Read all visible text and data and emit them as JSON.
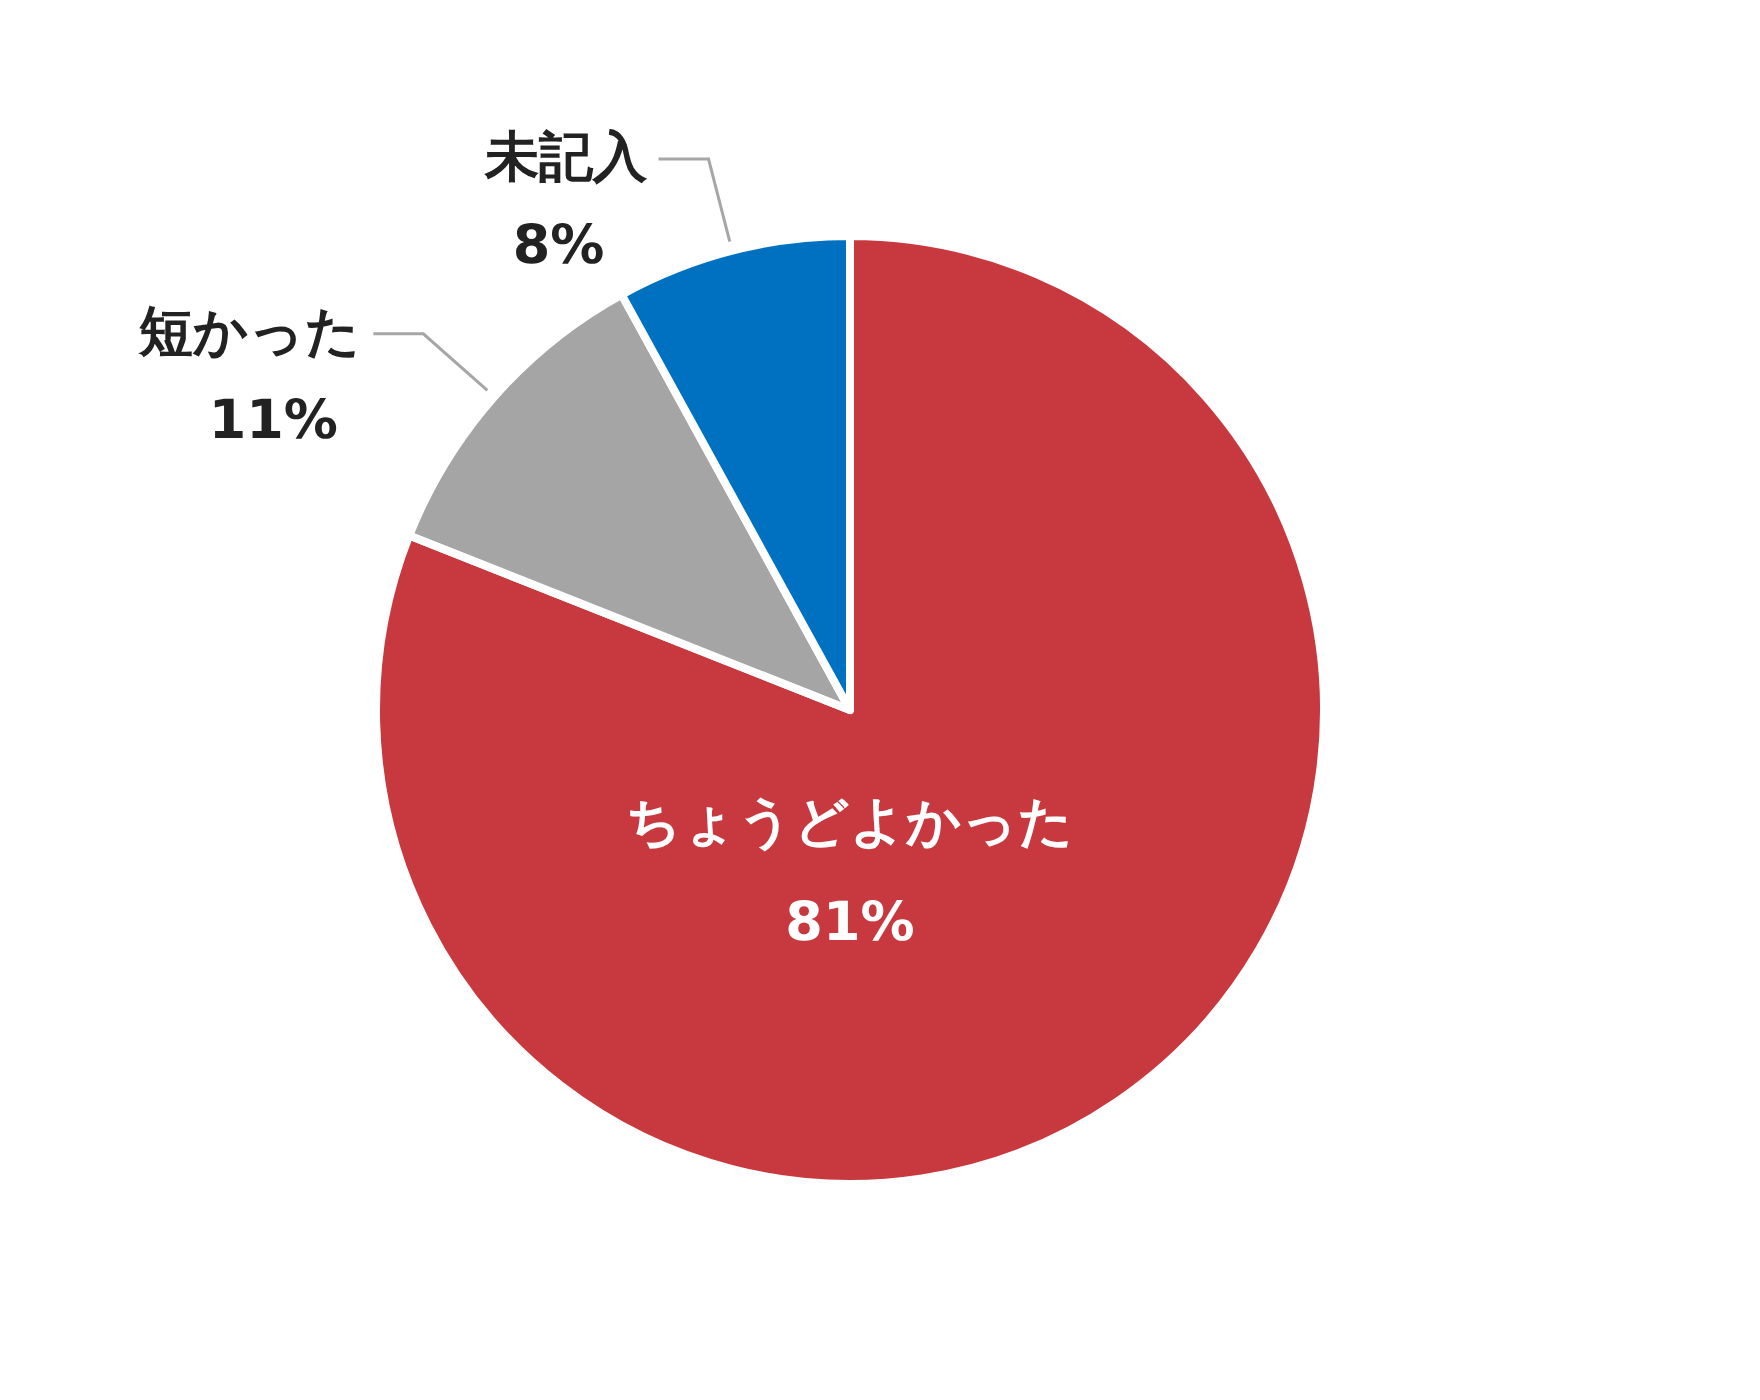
{
  "chart_data": {
    "type": "pie",
    "categories": [
      "ちょうどよかった",
      "短かった",
      "未記入"
    ],
    "values": [
      81,
      11,
      8
    ],
    "colors": [
      "#c8393f",
      "#a5a5a5",
      "#0070c0"
    ],
    "value_labels": [
      "81%",
      "11%",
      "8%"
    ]
  }
}
